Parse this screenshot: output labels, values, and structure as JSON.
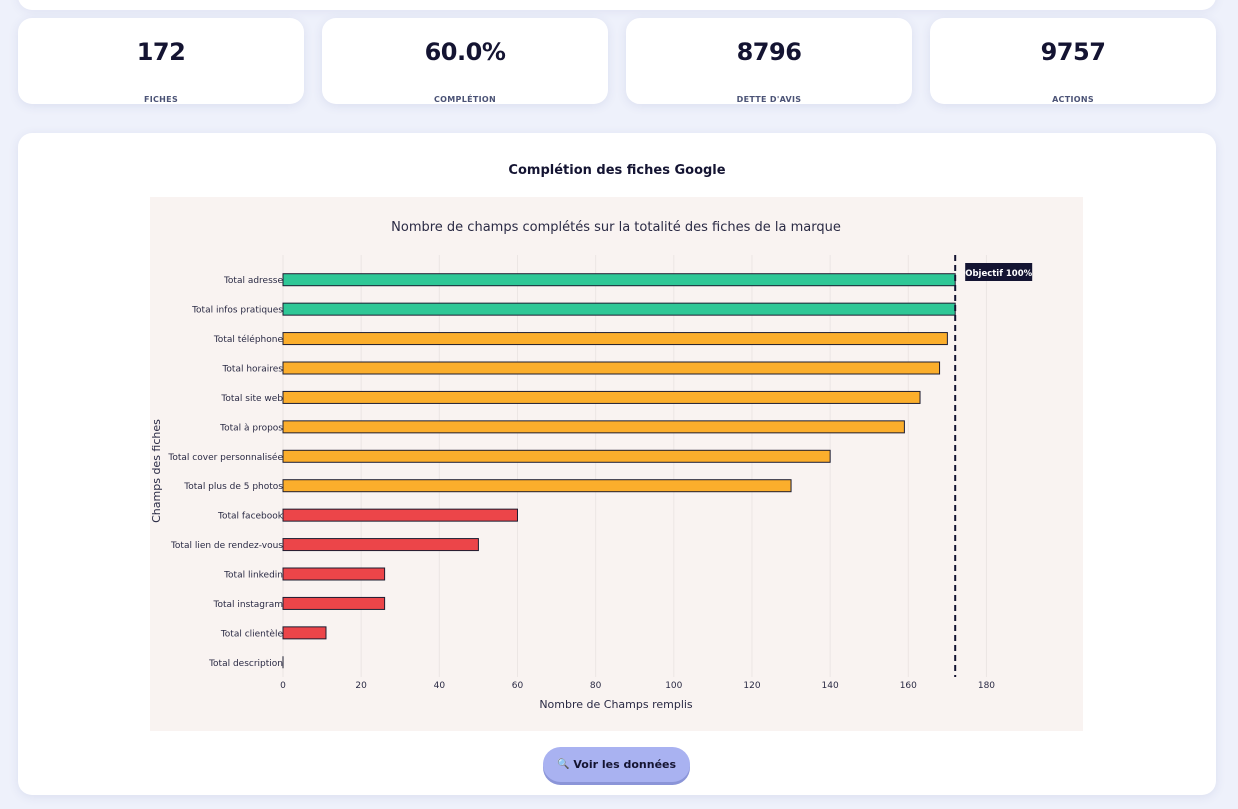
{
  "kpis": [
    {
      "value": "172",
      "label": "FICHES"
    },
    {
      "value": "60.0%",
      "label": "COMPLÉTION"
    },
    {
      "value": "8796",
      "label": "DETTE D'AVIS"
    },
    {
      "value": "9757",
      "label": "ACTIONS"
    }
  ],
  "card": {
    "title": "Complétion des fiches Google",
    "button_label": "Voir les données",
    "button_icon": "🔍"
  },
  "chart_data": {
    "type": "bar",
    "orientation": "horizontal",
    "title": "Nombre de champs complétés sur la totalité des fiches de la marque",
    "xlabel": "Nombre de Champs remplis",
    "ylabel": "Champs des fiches",
    "xlim": [
      0,
      185
    ],
    "xticks": [
      0,
      20,
      40,
      60,
      80,
      100,
      120,
      140,
      160,
      180
    ],
    "categories": [
      "Total adresse",
      "Total infos pratiques",
      "Total téléphone",
      "Total horaires",
      "Total site web",
      "Total à propos",
      "Total cover personnalisée",
      "Total plus de 5 photos",
      "Total facebook",
      "Total lien de rendez-vous",
      "Total linkedin",
      "Total instagram",
      "Total clientèle",
      "Total description"
    ],
    "values": [
      172,
      172,
      170,
      168,
      163,
      159,
      140,
      130,
      60,
      50,
      26,
      26,
      11,
      0
    ],
    "bar_colors": [
      "#2fc796",
      "#2fc796",
      "#fbae2c",
      "#fbae2c",
      "#fbae2c",
      "#fbae2c",
      "#fbae2c",
      "#fbae2c",
      "#ec4549",
      "#ec4549",
      "#ec4549",
      "#ec4549",
      "#ec4549",
      "#ec4549"
    ],
    "target": {
      "value": 172,
      "label": "Objectif 100%"
    },
    "background": "#f9f3f1",
    "grid": true
  }
}
